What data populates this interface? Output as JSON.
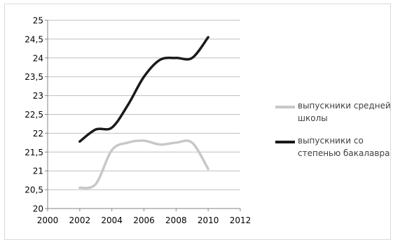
{
  "chart_data": {
    "type": "line",
    "xlim": [
      2000,
      2012
    ],
    "ylim": [
      20,
      25
    ],
    "x_ticks": [
      "2000",
      "2002",
      "2004",
      "2006",
      "2008",
      "2010",
      "2012"
    ],
    "y_ticks": [
      "20",
      "20,5",
      "21",
      "21,5",
      "22",
      "22,5",
      "23",
      "23,5",
      "24",
      "24,5",
      "25"
    ],
    "grid": "horizontal",
    "legend_position": "right",
    "series": [
      {
        "name": "выпускники средней школы",
        "color": "#c8c8c8",
        "x": [
          2002,
          2003,
          2004,
          2005,
          2006,
          2007,
          2008,
          2009,
          2010
        ],
        "y": [
          20.55,
          20.65,
          21.55,
          21.75,
          21.8,
          21.7,
          21.75,
          21.75,
          21.05
        ]
      },
      {
        "name": "выпускники со степенью бакалавра",
        "color": "#1a1a1a",
        "x": [
          2002,
          2003,
          2004,
          2005,
          2006,
          2007,
          2008,
          2009,
          2010
        ],
        "y": [
          21.78,
          22.1,
          22.15,
          22.75,
          23.5,
          23.95,
          24.0,
          24.0,
          24.55
        ]
      }
    ]
  }
}
